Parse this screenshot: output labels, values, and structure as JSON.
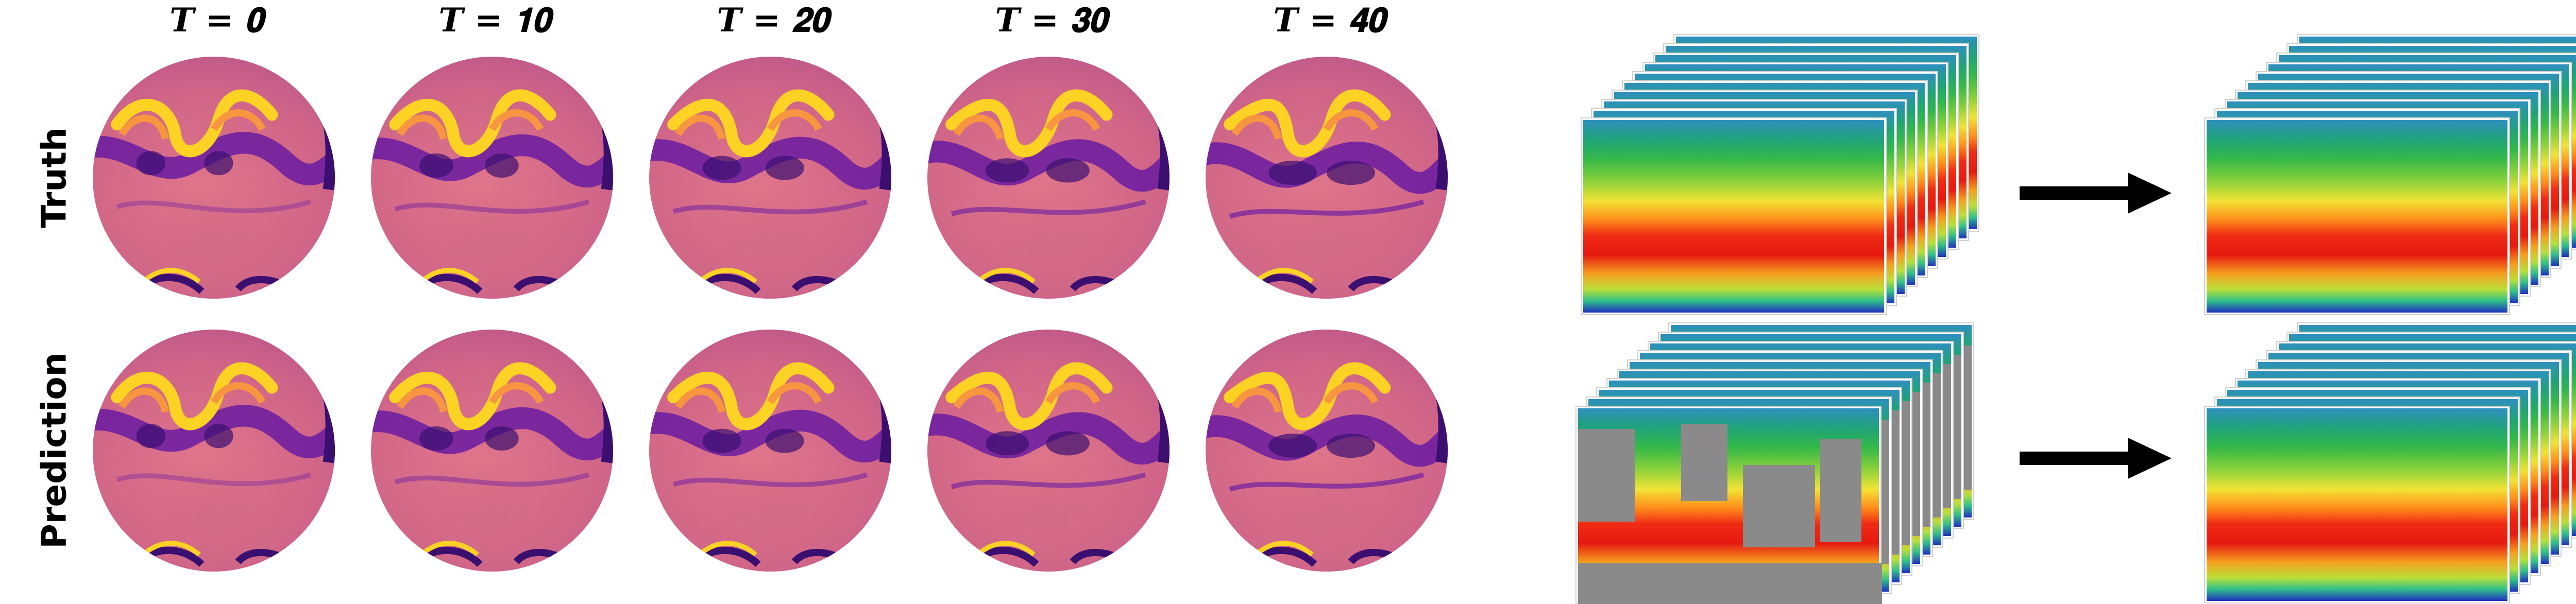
{
  "columns": [
    {
      "label": "𝑻 = 𝟎"
    },
    {
      "label": "𝑻 = 𝟏𝟎"
    },
    {
      "label": "𝑻 = 𝟐𝟎"
    },
    {
      "label": "𝑻 = 𝟑𝟎"
    },
    {
      "label": "𝑻 = 𝟒𝟎"
    }
  ],
  "rows": [
    {
      "label": "Truth"
    },
    {
      "label": "Prediction"
    }
  ],
  "colors": {
    "plasma_dark": "#3b0f70",
    "plasma_purple": "#6a1ba2",
    "plasma_pink": "#d0638a",
    "plasma_orange": "#f89540",
    "plasma_yellow": "#fcd225",
    "mask_gray": "#8a8a8a",
    "arrow": "#000000"
  },
  "icons": [
    "right-arrow-icon"
  ]
}
